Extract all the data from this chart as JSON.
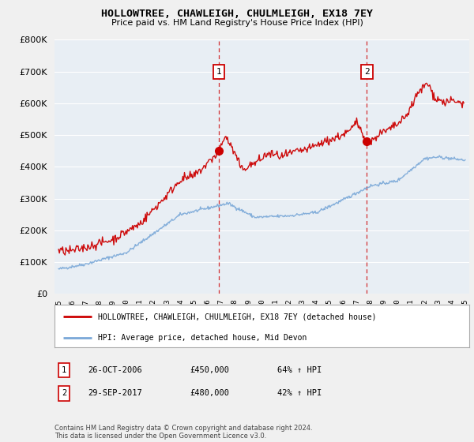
{
  "title": "HOLLOWTREE, CHAWLEIGH, CHULMLEIGH, EX18 7EY",
  "subtitle": "Price paid vs. HM Land Registry's House Price Index (HPI)",
  "ylim": [
    0,
    800000
  ],
  "xlim_start": 1994.7,
  "xlim_end": 2025.3,
  "xticks": [
    1995,
    1996,
    1997,
    1998,
    1999,
    2000,
    2001,
    2002,
    2003,
    2004,
    2005,
    2006,
    2007,
    2008,
    2009,
    2010,
    2011,
    2012,
    2013,
    2014,
    2015,
    2016,
    2017,
    2018,
    2019,
    2020,
    2021,
    2022,
    2023,
    2024,
    2025
  ],
  "vline1_x": 2006.82,
  "vline2_x": 2017.75,
  "marker1_y": 450000,
  "marker2_y": 480000,
  "legend_line1": "HOLLOWTREE, CHAWLEIGH, CHULMLEIGH, EX18 7EY (detached house)",
  "legend_line2": "HPI: Average price, detached house, Mid Devon",
  "table_row1": [
    "1",
    "26-OCT-2006",
    "£450,000",
    "64% ↑ HPI"
  ],
  "table_row2": [
    "2",
    "29-SEP-2017",
    "£480,000",
    "42% ↑ HPI"
  ],
  "footer": "Contains HM Land Registry data © Crown copyright and database right 2024.\nThis data is licensed under the Open Government Licence v3.0.",
  "line_color_property": "#cc0000",
  "line_color_hpi": "#7aa8d8",
  "background_color": "#f0f0f0",
  "plot_bg_color": "#e8eef4",
  "grid_color": "#ffffff"
}
